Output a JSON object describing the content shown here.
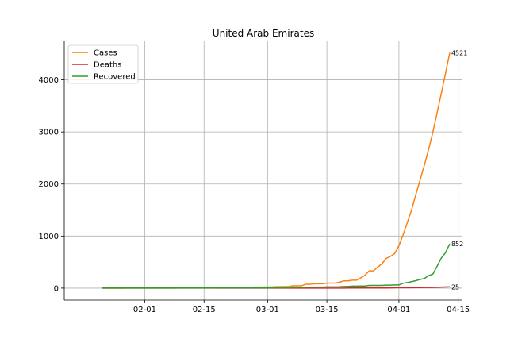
{
  "chart_data": {
    "type": "line",
    "title": "United Arab Emirates",
    "xlabel": "",
    "ylabel": "",
    "x_axis": {
      "type": "date",
      "range": [
        "2020-01-13",
        "2020-04-16"
      ],
      "ticks": [
        {
          "date": "2020-02-01",
          "label": "02-01"
        },
        {
          "date": "2020-02-15",
          "label": "02-15"
        },
        {
          "date": "2020-03-01",
          "label": "03-01"
        },
        {
          "date": "2020-03-15",
          "label": "03-15"
        },
        {
          "date": "2020-04-01",
          "label": "04-01"
        },
        {
          "date": "2020-04-15",
          "label": "04-15"
        }
      ]
    },
    "y_axis": {
      "range": [
        -230,
        4740
      ],
      "ticks": [
        0,
        1000,
        2000,
        3000,
        4000
      ]
    },
    "grid": true,
    "legend_position": "top-left",
    "x": [
      "2020-01-22",
      "2020-01-23",
      "2020-01-24",
      "2020-01-25",
      "2020-01-26",
      "2020-01-27",
      "2020-01-28",
      "2020-01-29",
      "2020-01-30",
      "2020-01-31",
      "2020-02-01",
      "2020-02-02",
      "2020-02-03",
      "2020-02-04",
      "2020-02-05",
      "2020-02-06",
      "2020-02-07",
      "2020-02-08",
      "2020-02-09",
      "2020-02-10",
      "2020-02-11",
      "2020-02-12",
      "2020-02-13",
      "2020-02-14",
      "2020-02-15",
      "2020-02-16",
      "2020-02-17",
      "2020-02-18",
      "2020-02-19",
      "2020-02-20",
      "2020-02-21",
      "2020-02-22",
      "2020-02-23",
      "2020-02-24",
      "2020-02-25",
      "2020-02-26",
      "2020-02-27",
      "2020-02-28",
      "2020-02-29",
      "2020-03-01",
      "2020-03-02",
      "2020-03-03",
      "2020-03-04",
      "2020-03-05",
      "2020-03-06",
      "2020-03-07",
      "2020-03-08",
      "2020-03-09",
      "2020-03-10",
      "2020-03-11",
      "2020-03-12",
      "2020-03-13",
      "2020-03-14",
      "2020-03-15",
      "2020-03-16",
      "2020-03-17",
      "2020-03-18",
      "2020-03-19",
      "2020-03-20",
      "2020-03-21",
      "2020-03-22",
      "2020-03-23",
      "2020-03-24",
      "2020-03-25",
      "2020-03-26",
      "2020-03-27",
      "2020-03-28",
      "2020-03-29",
      "2020-03-30",
      "2020-03-31",
      "2020-04-01",
      "2020-04-02",
      "2020-04-03",
      "2020-04-04",
      "2020-04-05",
      "2020-04-06",
      "2020-04-07",
      "2020-04-08",
      "2020-04-09",
      "2020-04-10",
      "2020-04-11",
      "2020-04-12",
      "2020-04-13"
    ],
    "series": [
      {
        "name": "Cases",
        "color": "#ff7f0e",
        "end_label": "4521",
        "values": [
          0,
          0,
          0,
          0,
          0,
          0,
          4,
          4,
          4,
          4,
          4,
          5,
          5,
          5,
          5,
          5,
          7,
          7,
          7,
          8,
          8,
          8,
          8,
          8,
          8,
          9,
          9,
          9,
          9,
          9,
          9,
          13,
          13,
          13,
          13,
          13,
          19,
          19,
          19,
          21,
          21,
          27,
          27,
          29,
          29,
          45,
          45,
          45,
          74,
          74,
          85,
          85,
          85,
          98,
          98,
          98,
          113,
          140,
          140,
          153,
          153,
          198,
          248,
          333,
          333,
          405,
          468,
          570,
          611,
          664,
          814,
          1024,
          1264,
          1505,
          1799,
          2076,
          2359,
          2659,
          2990,
          3360,
          3736,
          4123,
          4521
        ]
      },
      {
        "name": "Deaths",
        "color": "#d62728",
        "end_label": "25",
        "values": [
          0,
          0,
          0,
          0,
          0,
          0,
          0,
          0,
          0,
          0,
          0,
          0,
          0,
          0,
          0,
          0,
          0,
          0,
          0,
          0,
          0,
          0,
          0,
          0,
          0,
          0,
          0,
          0,
          0,
          0,
          0,
          0,
          0,
          0,
          0,
          0,
          0,
          0,
          0,
          0,
          0,
          0,
          0,
          0,
          0,
          0,
          0,
          0,
          0,
          0,
          0,
          0,
          0,
          0,
          0,
          0,
          0,
          0,
          2,
          2,
          2,
          2,
          2,
          2,
          2,
          2,
          2,
          3,
          5,
          6,
          8,
          8,
          9,
          9,
          10,
          11,
          12,
          12,
          14,
          16,
          20,
          22,
          25
        ]
      },
      {
        "name": "Recovered",
        "color": "#2ca02c",
        "end_label": "852",
        "values": [
          0,
          0,
          0,
          0,
          0,
          0,
          0,
          0,
          0,
          1,
          1,
          1,
          1,
          1,
          1,
          1,
          1,
          1,
          3,
          3,
          3,
          3,
          3,
          3,
          3,
          3,
          3,
          4,
          4,
          4,
          4,
          4,
          4,
          4,
          4,
          4,
          5,
          5,
          5,
          5,
          5,
          5,
          5,
          7,
          7,
          12,
          12,
          12,
          17,
          17,
          20,
          20,
          20,
          23,
          23,
          23,
          25,
          31,
          31,
          38,
          38,
          41,
          41,
          52,
          52,
          52,
          52,
          58,
          58,
          61,
          61,
          93,
          108,
          125,
          144,
          167,
          186,
          239,
          268,
          417,
          577,
          680,
          852
        ]
      }
    ]
  }
}
